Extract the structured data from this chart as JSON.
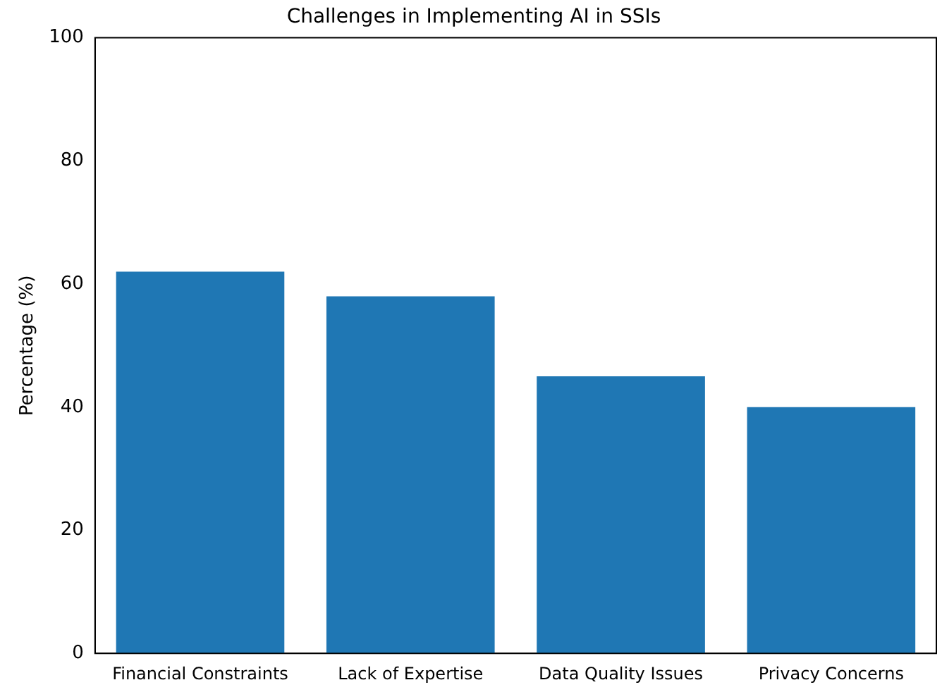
{
  "chart_data": {
    "type": "bar",
    "title": "Challenges in Implementing AI in SSIs",
    "ylabel": "Percentage (%)",
    "categories": [
      "Financial Constraints",
      "Lack of Expertise",
      "Data Quality Issues",
      "Privacy Concerns"
    ],
    "values": [
      62,
      58,
      45,
      40
    ],
    "color": "#1f77b4",
    "ylim": [
      0,
      100
    ],
    "yticks": [
      0,
      20,
      40,
      60,
      80,
      100
    ],
    "grid": false,
    "legend": false
  }
}
